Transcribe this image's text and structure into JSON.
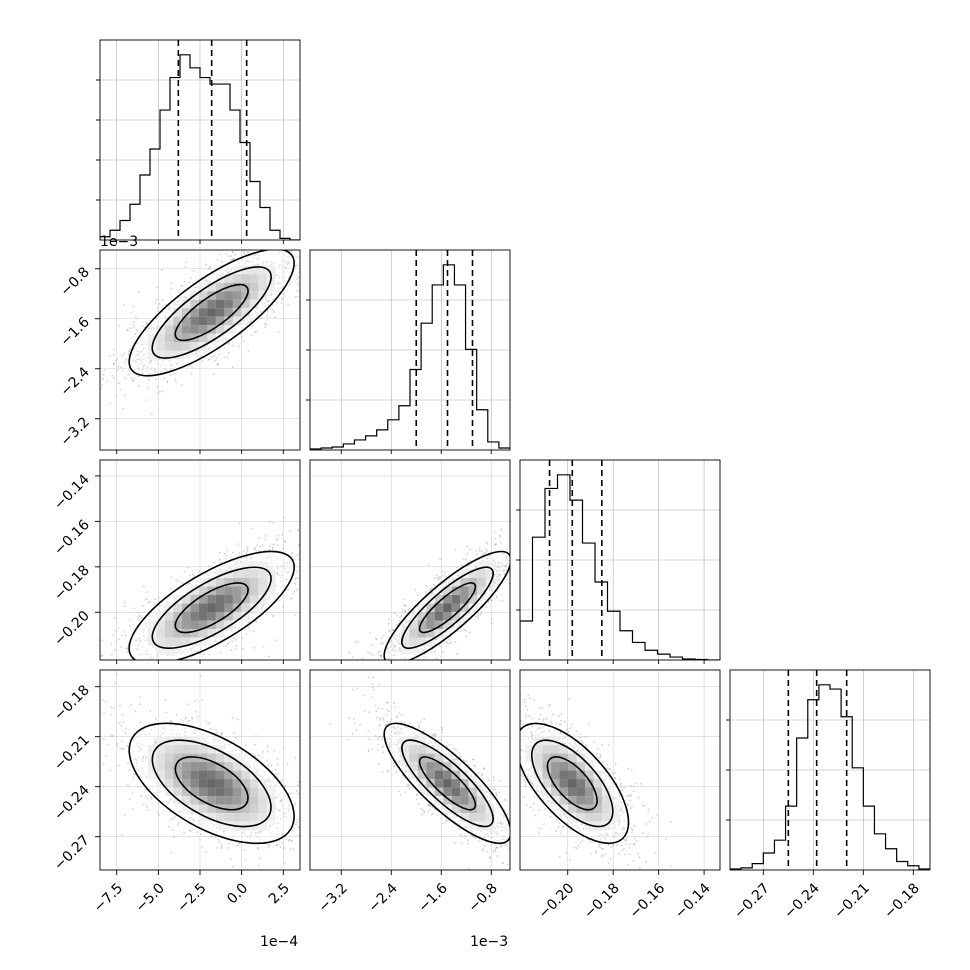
{
  "chart_data": {
    "type": "corner",
    "parameters": [
      {
        "range": [
          -8.5,
          3.5
        ],
        "ticks": [
          "−7.5",
          "−5.0",
          "−2.5",
          "0.0",
          "2.5"
        ],
        "tick_values": [
          -7.5,
          -5.0,
          -2.5,
          0.0,
          2.5
        ],
        "multiplier": "1e−4"
      },
      {
        "range": [
          -3.7,
          -0.5
        ],
        "ticks": [
          "−3.2",
          "−2.4",
          "−1.6",
          "−0.8"
        ],
        "tick_values": [
          -3.2,
          -2.4,
          -1.6,
          -0.8
        ],
        "multiplier": "1e−3"
      },
      {
        "range": [
          -0.221,
          -0.133
        ],
        "ticks": [
          "−0.20",
          "−0.18",
          "−0.16",
          "−0.14"
        ],
        "tick_values": [
          -0.2,
          -0.18,
          -0.16,
          -0.14
        ],
        "y_ticks": [
          "−0.20",
          "−0.18",
          "−0.16",
          "−0.14"
        ],
        "y_tick_values": [
          -0.2,
          -0.18,
          -0.16,
          -0.14
        ],
        "multiplier": ""
      },
      {
        "range": [
          -0.29,
          -0.17
        ],
        "ticks": [
          "−0.27",
          "−0.24",
          "−0.21",
          "−0.18"
        ],
        "tick_values": [
          -0.27,
          -0.24,
          -0.21,
          -0.18
        ],
        "multiplier": ""
      }
    ],
    "quantiles": [
      [
        -3.8,
        -1.8,
        0.3
      ],
      [
        -2.0,
        -1.5,
        -1.1
      ],
      [
        -0.208,
        -0.198,
        -0.185
      ],
      [
        -0.255,
        -0.238,
        -0.22
      ]
    ],
    "histograms": [
      {
        "counts": [
          1,
          3,
          6,
          11,
          20,
          28,
          40,
          50,
          57,
          53,
          50,
          48,
          48,
          40,
          30,
          18,
          10,
          3,
          0.5,
          0
        ]
      },
      {
        "counts": [
          0.5,
          1,
          1.5,
          3,
          5,
          7,
          10,
          15,
          22,
          40,
          63,
          82,
          92,
          82,
          50,
          20,
          4,
          1
        ]
      },
      {
        "counts": [
          20,
          63,
          88,
          95,
          82,
          60,
          40,
          25,
          15,
          9,
          5,
          3,
          1.5,
          0.5,
          0.3,
          0
        ]
      },
      {
        "counts": [
          0.5,
          1,
          3,
          8,
          14,
          30,
          62,
          80,
          87,
          85,
          72,
          48,
          30,
          17,
          10,
          4,
          2,
          0.5
        ]
      }
    ],
    "pairs": [
      {
        "row": 1,
        "col": 0,
        "mean": [
          -1.8,
          -1.5
        ],
        "sd": [
          2.2,
          0.45
        ],
        "rho": 0.78
      },
      {
        "row": 2,
        "col": 0,
        "mean": [
          -1.8,
          -0.198
        ],
        "sd": [
          2.2,
          0.011
        ],
        "rho": 0.72
      },
      {
        "row": 2,
        "col": 1,
        "mean": [
          -1.5,
          -0.198
        ],
        "sd": [
          0.45,
          0.011
        ],
        "rho": 0.85
      },
      {
        "row": 3,
        "col": 0,
        "mean": [
          -1.8,
          -0.238
        ],
        "sd": [
          2.2,
          0.016
        ],
        "rho": -0.55
      },
      {
        "row": 3,
        "col": 1,
        "mean": [
          -1.5,
          -0.238
        ],
        "sd": [
          0.45,
          0.016
        ],
        "rho": -0.82
      },
      {
        "row": 3,
        "col": 2,
        "mean": [
          -0.198,
          -0.238
        ],
        "sd": [
          0.011,
          0.016
        ],
        "rho": -0.65
      }
    ],
    "grid": true
  }
}
